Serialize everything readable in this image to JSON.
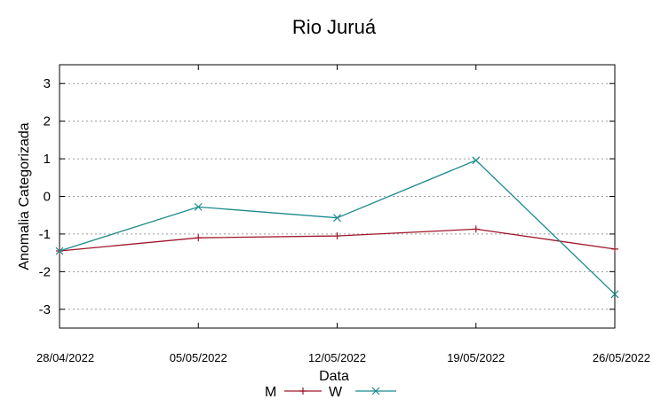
{
  "chart_data": {
    "type": "line",
    "title": "Rio Juruá",
    "xlabel": "Data",
    "ylabel": "Anomalia Categorizada",
    "categories": [
      "28/04/2022",
      "05/05/2022",
      "12/05/2022",
      "19/05/2022",
      "26/05/2022"
    ],
    "yticks": [
      "3",
      "2",
      "1",
      "0",
      "-1",
      "-2",
      "-3"
    ],
    "ylim": [
      -3.5,
      3.5
    ],
    "grid": true,
    "legend_position": "bottom",
    "series": [
      {
        "name": "M",
        "values": [
          -1.45,
          -1.1,
          -1.05,
          -0.87,
          -1.4
        ],
        "color": "#a0162a",
        "marker": "plus"
      },
      {
        "name": "W",
        "values": [
          -1.45,
          -0.28,
          -0.57,
          0.96,
          -2.6
        ],
        "color": "#1b8a8c",
        "marker": "x"
      }
    ]
  }
}
